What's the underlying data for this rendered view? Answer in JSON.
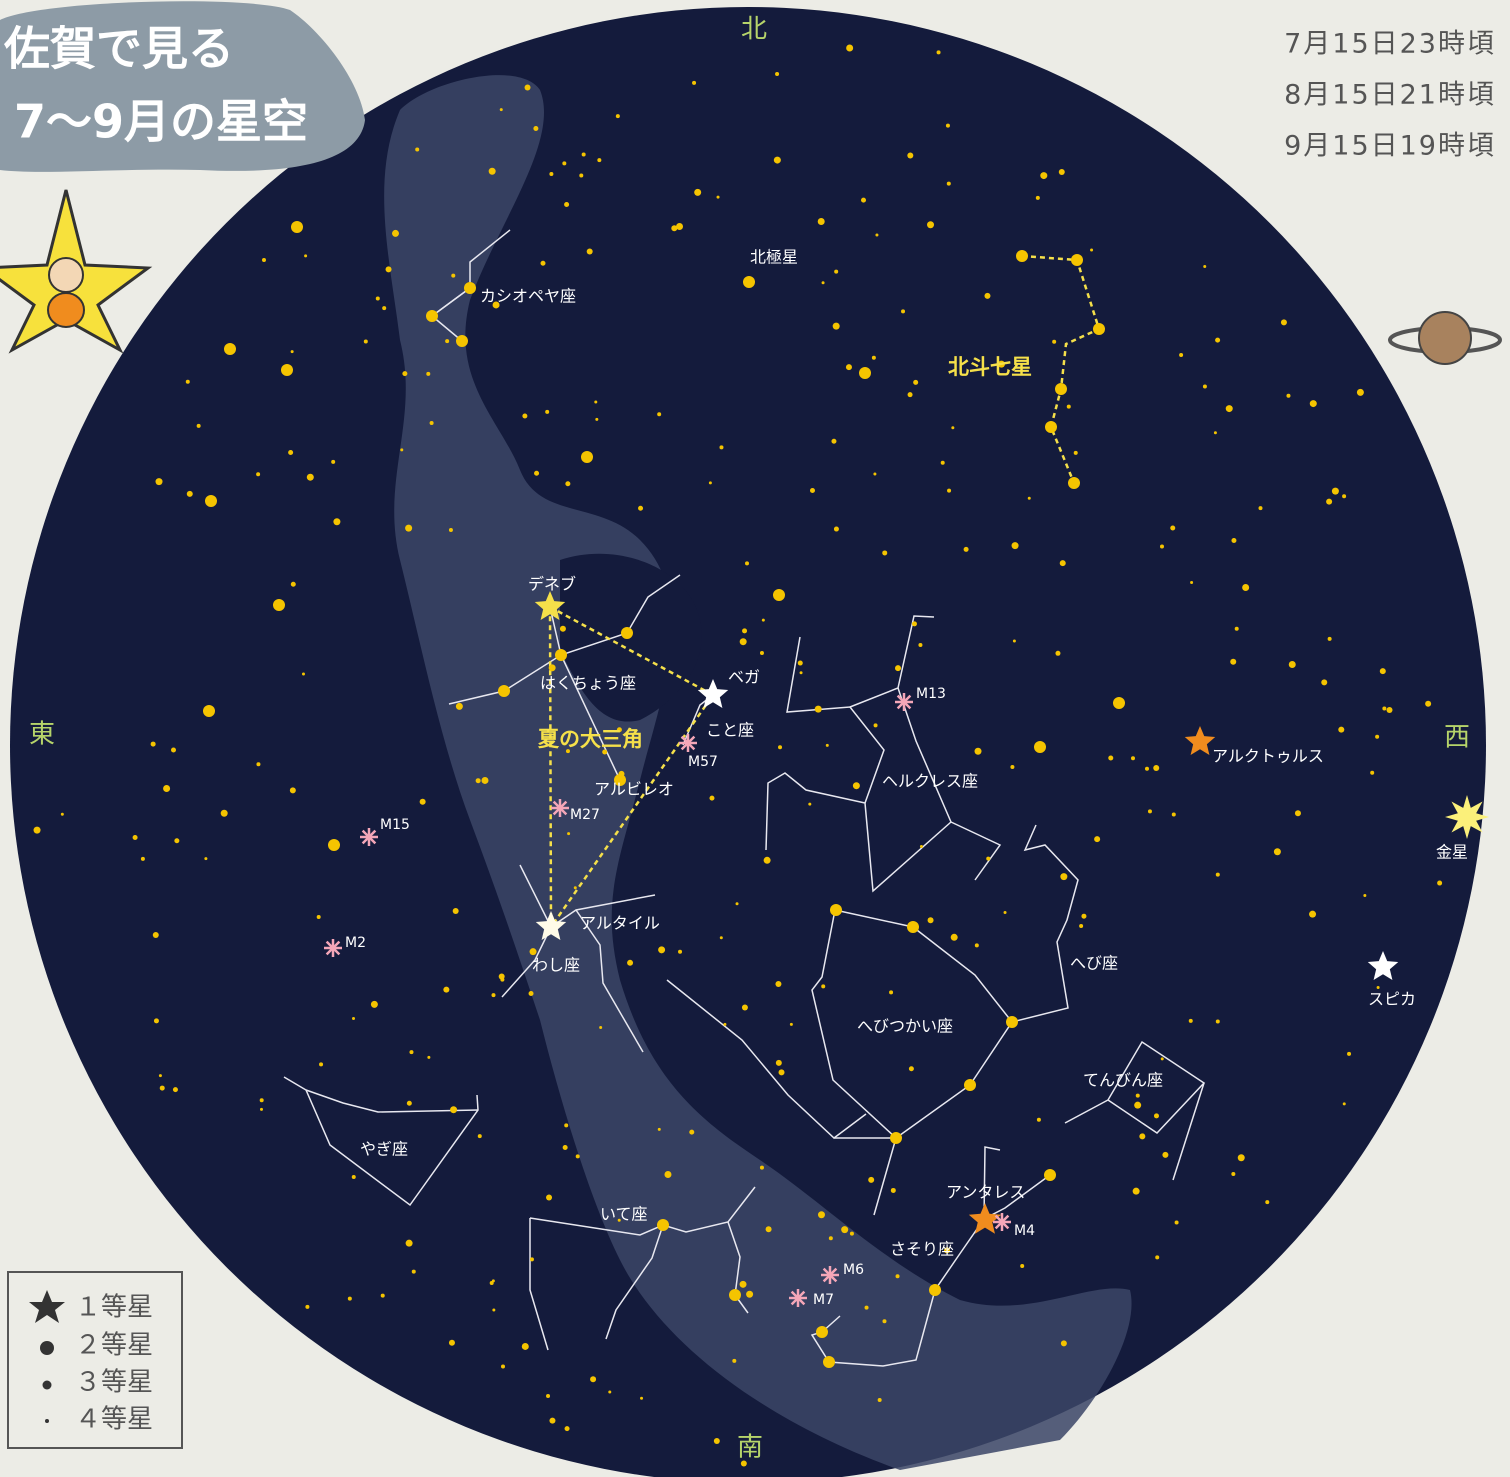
{
  "header": {
    "title_line1": "佐賀で見る",
    "title_line2": "7〜9月の星空"
  },
  "times": [
    "7月15日23時頃",
    "8月15日21時頃",
    "9月15日19時頃"
  ],
  "directions": {
    "north": "北",
    "south": "南",
    "east": "東",
    "west": "西"
  },
  "labels": [
    "北極星",
    "カシオペヤ座",
    "北斗七星",
    "デネブ",
    "はくちょう座",
    "ベガ",
    "こと座",
    "夏の大三角",
    "M57",
    "アルビレオ",
    "M27",
    "M13",
    "ヘルクレス座",
    "アルクトゥルス",
    "金星",
    "M15",
    "M2",
    "アルタイル",
    "わし座",
    "へび座",
    "スピカ",
    "へびつかい座",
    "てんびん座",
    "やぎ座",
    "いて座",
    "アンタレス",
    "M4",
    "さそり座",
    "M6",
    "M7"
  ],
  "legend": [
    "１等星",
    "２等星",
    "３等星",
    "４等星"
  ]
}
